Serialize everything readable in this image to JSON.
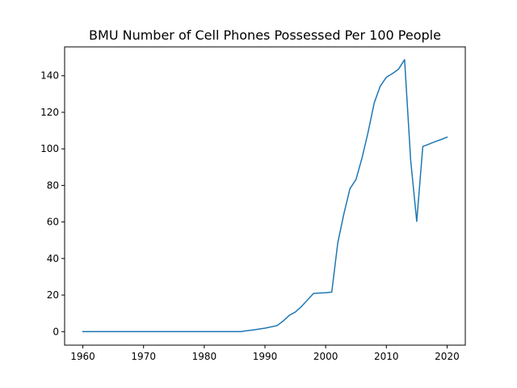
{
  "chart_data": {
    "type": "line",
    "title": "BMU Number of Cell Phones Possessed Per 100 People",
    "xlabel": "",
    "ylabel": "",
    "xlim": [
      1957,
      2023
    ],
    "ylim": [
      -7.4,
      155.8
    ],
    "xticks": [
      1960,
      1970,
      1980,
      1990,
      2000,
      2010,
      2020
    ],
    "yticks": [
      0,
      20,
      40,
      60,
      80,
      100,
      120,
      140
    ],
    "grid": false,
    "line_color": "#1f77b4",
    "series": [
      {
        "x": [
          1960,
          1961,
          1962,
          1963,
          1964,
          1965,
          1966,
          1967,
          1968,
          1969,
          1970,
          1971,
          1972,
          1973,
          1974,
          1975,
          1976,
          1977,
          1978,
          1979,
          1980,
          1981,
          1982,
          1983,
          1984,
          1985,
          1986,
          1987,
          1988,
          1989,
          1990,
          1991,
          1992,
          1993,
          1994,
          1995,
          1996,
          1997,
          1998,
          1999,
          2000,
          2001,
          2002,
          2003,
          2004,
          2005,
          2006,
          2007,
          2008,
          2009,
          2010,
          2011,
          2012,
          2013,
          2014,
          2015,
          2016,
          2017,
          2018,
          2019,
          2020
        ],
        "values": [
          0,
          0,
          0,
          0,
          0,
          0,
          0,
          0,
          0,
          0,
          0,
          0,
          0,
          0,
          0,
          0,
          0,
          0,
          0,
          0,
          0,
          0,
          0,
          0,
          0,
          0,
          0,
          0.5,
          0.9,
          1.4,
          1.9,
          2.6,
          3.3,
          5.8,
          8.9,
          10.7,
          13.7,
          17.3,
          20.9,
          21.1,
          21.3,
          21.6,
          48.7,
          64.5,
          78.2,
          83.3,
          95.2,
          109.3,
          125.2,
          134.4,
          139.2,
          141.2,
          143.6,
          148.8,
          93.9,
          60.3,
          101.3,
          102.6,
          103.9,
          105.1,
          106.4
        ]
      }
    ]
  }
}
